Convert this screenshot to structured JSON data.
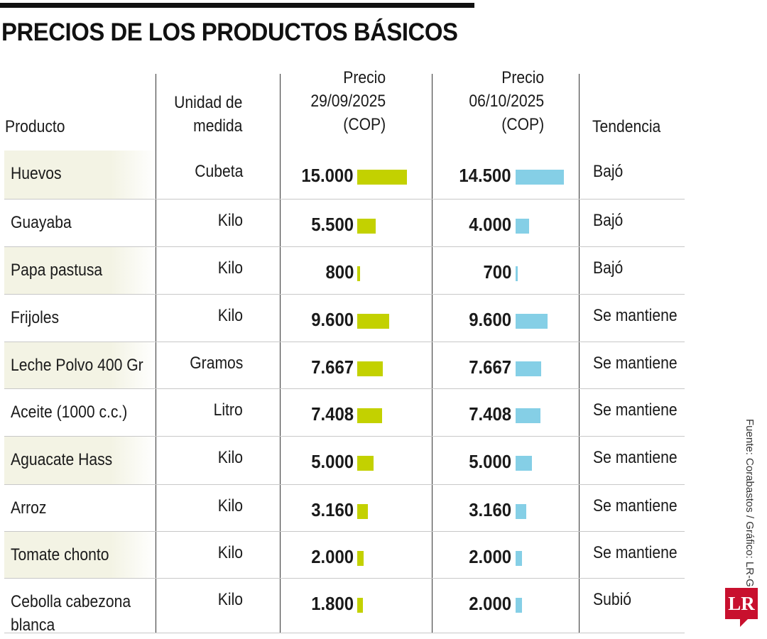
{
  "title": "PRECIOS DE LOS PRODUCTOS BÁSICOS",
  "headers": {
    "product": "Producto",
    "unit_1": "Unidad de",
    "unit_2": "medida",
    "p1_1": "Precio",
    "p1_2": "29/09/2025",
    "p1_3": "(COP)",
    "p2_1": "Precio",
    "p2_2": "06/10/2025",
    "p2_3": "(COP)",
    "trend": "Tendencia"
  },
  "rows": [
    {
      "product": "Huevos",
      "unit": "Cubeta",
      "price1": "15.000",
      "price2": "14.500",
      "trend": "Bajó"
    },
    {
      "product": "Guayaba",
      "unit": "Kilo",
      "price1": "5.500",
      "price2": "4.000",
      "trend": "Bajó"
    },
    {
      "product": "Papa pastusa",
      "unit": "Kilo",
      "price1": "800",
      "price2": "700",
      "trend": "Bajó"
    },
    {
      "product": "Frijoles",
      "unit": "Kilo",
      "price1": "9.600",
      "price2": "9.600",
      "trend": "Se mantiene"
    },
    {
      "product": "Leche Polvo 400 Gr",
      "unit": "Gramos",
      "price1": "7.667",
      "price2": "7.667",
      "trend": "Se mantiene"
    },
    {
      "product": "Aceite (1000 c.c.)",
      "unit": "Litro",
      "price1": "7.408",
      "price2": "7.408",
      "trend": "Se mantiene"
    },
    {
      "product": "Aguacate Hass",
      "unit": "Kilo",
      "price1": "5.000",
      "price2": "5.000",
      "trend": "Se mantiene"
    },
    {
      "product": "Arroz",
      "unit": "Kilo",
      "price1": "3.160",
      "price2": "3.160",
      "trend": "Se mantiene"
    },
    {
      "product": "Tomate chonto",
      "unit": "Kilo",
      "price1": "2.000",
      "price2": "2.000",
      "trend": "Se mantiene"
    },
    {
      "product": "Cebolla cabezona blanca",
      "unit": "Kilo",
      "price1": "1.800",
      "price2": "2.000",
      "trend": "Subió"
    }
  ],
  "source": "Fuente: Corabastos / Gráfico: LR-GR",
  "logo": "LR",
  "colors": {
    "series1": "#c3d100",
    "series2": "#85cfe6",
    "logo": "#c8102e"
  },
  "chart_data": {
    "type": "table",
    "title": "PRECIOS DE LOS PRODUCTOS BÁSICOS",
    "columns": [
      "Producto",
      "Unidad de medida",
      "Precio 29/09/2025 (COP)",
      "Precio 06/10/2025 (COP)",
      "Tendencia"
    ],
    "categories": [
      "Huevos",
      "Guayaba",
      "Papa pastusa",
      "Frijoles",
      "Leche Polvo 400 Gr",
      "Aceite (1000 c.c.)",
      "Aguacate Hass",
      "Arroz",
      "Tomate chonto",
      "Cebolla cabezona blanca"
    ],
    "series": [
      {
        "name": "Precio 29/09/2025 (COP)",
        "values": [
          15000,
          5500,
          800,
          9600,
          7667,
          7408,
          5000,
          3160,
          2000,
          1800
        ]
      },
      {
        "name": "Precio 06/10/2025 (COP)",
        "values": [
          14500,
          4000,
          700,
          9600,
          7667,
          7408,
          5000,
          3160,
          2000,
          2000
        ]
      }
    ]
  }
}
